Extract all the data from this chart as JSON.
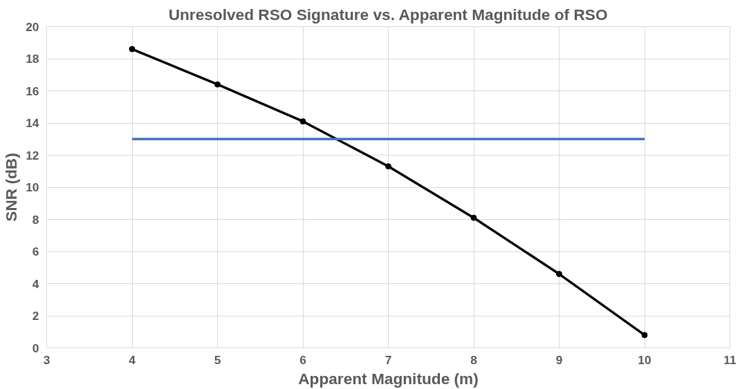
{
  "chart_data": {
    "type": "line",
    "title": "Unresolved RSO Signature vs. Apparent Magnitude of RSO",
    "xlabel": "Apparent Magnitude (m)",
    "ylabel": "SNR (dB)",
    "series": [
      {
        "color": "#000000",
        "x": [
          4,
          5,
          6,
          7,
          8,
          9,
          10
        ],
        "values": [
          18.6,
          16.4,
          14.1,
          11.3,
          8.1,
          4.6,
          0.8
        ],
        "marker": "circle"
      },
      {
        "color": "#4472c4",
        "x": [
          4,
          10
        ],
        "values": [
          13,
          13
        ],
        "marker": "none"
      }
    ],
    "xlim": [
      3,
      11
    ],
    "xticks": [
      3,
      4,
      5,
      6,
      7,
      8,
      9,
      10,
      11
    ],
    "ylim": [
      0,
      20
    ],
    "yticks": [
      0,
      2,
      4,
      6,
      8,
      10,
      12,
      14,
      16,
      18,
      20
    ],
    "grid": true,
    "line_style": "solid"
  }
}
